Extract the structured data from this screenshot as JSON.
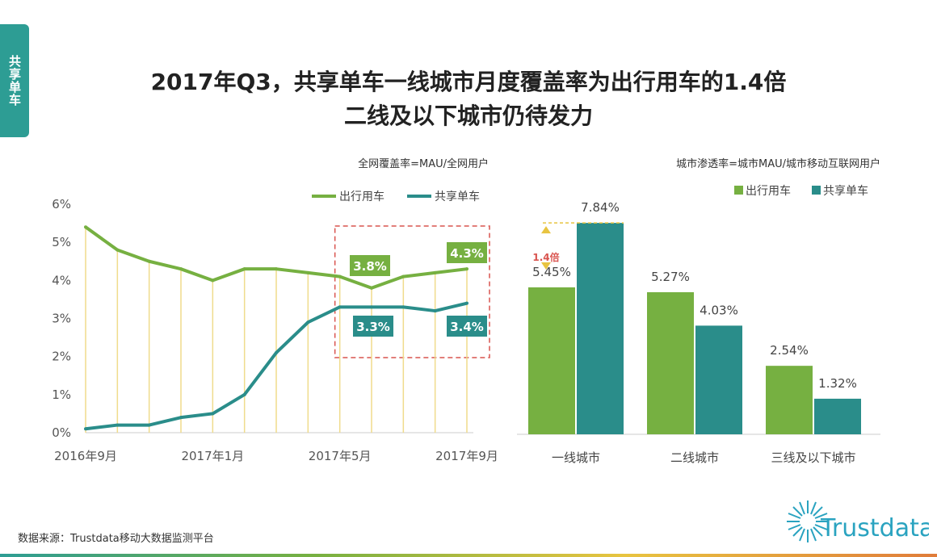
{
  "side_tab": "共享单车",
  "title_line1": "2017年Q3，共享单车一线城市月度覆盖率为出行用车的1.4倍",
  "title_line2": "二线及以下城市仍待发力",
  "source": "数据来源：Trustdata移动大数据监测平台",
  "logo_text": "Trustdata",
  "colors": {
    "green": "#76b041",
    "teal": "#2a8d8a",
    "accent_red": "#d9544f",
    "connector": "#f0dc8c"
  },
  "chart_data": [
    {
      "type": "line",
      "subtitle": "全网覆盖率=MAU/全网用户",
      "ylim": [
        0,
        6
      ],
      "yticks": [
        "0%",
        "1%",
        "2%",
        "3%",
        "4%",
        "5%",
        "6%"
      ],
      "x": [
        "2016年9月",
        "2016年10月",
        "2016年11月",
        "2016年12月",
        "2017年1月",
        "2017年2月",
        "2017年3月",
        "2017年4月",
        "2017年5月",
        "2017年6月",
        "2017年7月",
        "2017年8月",
        "2017年9月"
      ],
      "xtick_labels": [
        "2016年9月",
        "2017年1月",
        "2017年5月",
        "2017年9月"
      ],
      "series": [
        {
          "name": "出行用车",
          "values": [
            5.4,
            4.8,
            4.5,
            4.3,
            4.0,
            4.3,
            4.3,
            4.2,
            4.1,
            3.8,
            4.1,
            4.2,
            4.3
          ]
        },
        {
          "name": "共享单车",
          "values": [
            0.1,
            0.2,
            0.2,
            0.4,
            0.5,
            1.0,
            2.1,
            2.9,
            3.3,
            3.3,
            3.3,
            3.2,
            3.4
          ]
        }
      ],
      "callouts": {
        "green_mid": "3.8%",
        "green_end": "4.3%",
        "teal_mid": "3.3%",
        "teal_end": "3.4%"
      },
      "highlight_box": "2017年5月-2017年9月"
    },
    {
      "type": "bar",
      "subtitle": "城市渗透率=城市MAU/城市移动互联网用户",
      "categories": [
        "一线城市",
        "二线城市",
        "三线及以下城市"
      ],
      "series": [
        {
          "name": "出行用车",
          "values": [
            5.45,
            5.27,
            2.54
          ],
          "labels": [
            "5.45%",
            "5.27%",
            "2.54%"
          ]
        },
        {
          "name": "共享单车",
          "values": [
            7.84,
            4.03,
            1.32
          ],
          "labels": [
            "7.84%",
            "4.03%",
            "1.32%"
          ]
        }
      ],
      "annotation": "1.4倍"
    }
  ]
}
